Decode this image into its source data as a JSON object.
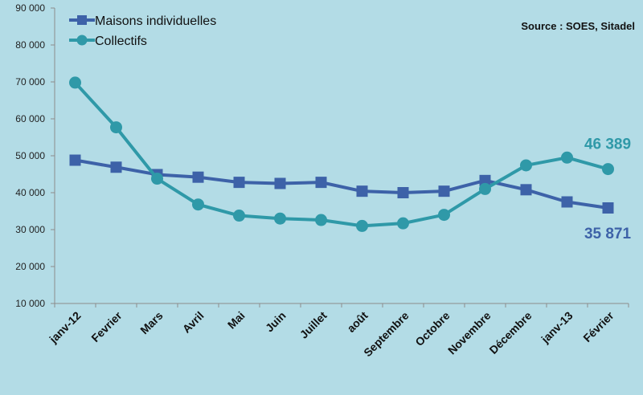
{
  "chart_data": {
    "type": "line",
    "categories": [
      "janv-12",
      "Fevrier",
      "Mars",
      "Avril",
      "Mai",
      "Juin",
      "Juillet",
      "août",
      "Septembre",
      "Octobre",
      "Novembre",
      "Décembre",
      "janv-13",
      "Février"
    ],
    "ylim": [
      10000,
      90000
    ],
    "y_ticks": [
      10000,
      20000,
      30000,
      40000,
      50000,
      60000,
      70000,
      80000,
      90000
    ],
    "y_tick_labels": [
      "10 000",
      "20 000",
      "30 000",
      "40 000",
      "50 000",
      "60 000",
      "70 000",
      "80 000",
      "90 000"
    ],
    "grid": false,
    "legend": "top-left",
    "source": "Source : SOES, Sitadel",
    "series": [
      {
        "name": "Maisons individuelles",
        "marker": "square",
        "color": "#3d62a8",
        "values": [
          48800,
          46900,
          44900,
          44200,
          42800,
          42500,
          42800,
          40400,
          40000,
          40400,
          43300,
          40800,
          37500,
          35871
        ],
        "end_label": "35 871"
      },
      {
        "name": "Collectifs",
        "marker": "circle",
        "color": "#2f99a8",
        "values": [
          69800,
          57700,
          43800,
          36800,
          33800,
          33000,
          32600,
          31000,
          31700,
          34000,
          41000,
          47400,
          49500,
          46389
        ],
        "end_label": "46 389"
      }
    ]
  }
}
